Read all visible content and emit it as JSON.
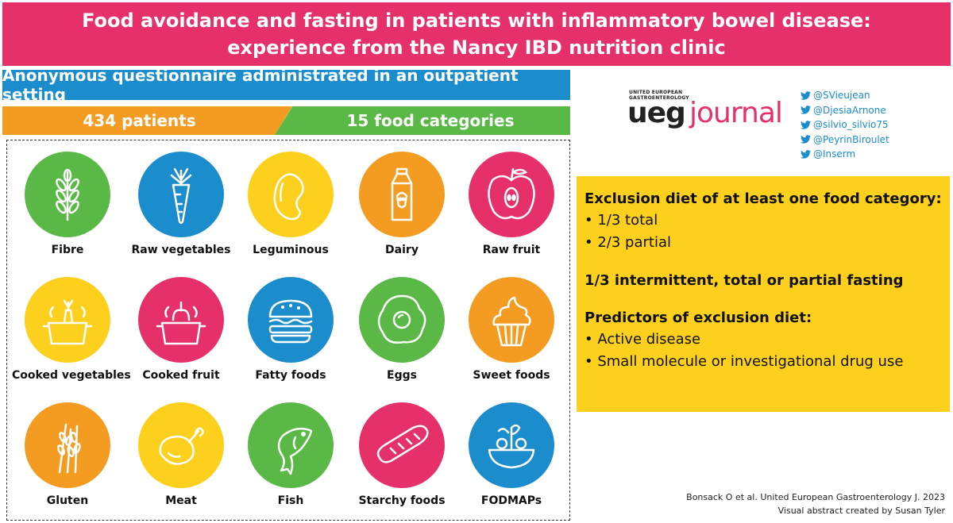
{
  "title": {
    "line1": "Food avoidance and fasting in patients with inflammatory bowel disease:",
    "line2": "experience from the Nancy IBD nutrition clinic"
  },
  "method": "Anonymous questionnaire administrated in an outpatient setting",
  "patients": "434 patients",
  "categories": "15 food categories",
  "foods": [
    {
      "label": "Fibre",
      "color": "#5ab846",
      "icon": "wheat-icon"
    },
    {
      "label": "Raw vegetables",
      "color": "#1b8ccc",
      "icon": "carrot-icon"
    },
    {
      "label": "Leguminous",
      "color": "#fcd01c",
      "icon": "bean-icon"
    },
    {
      "label": "Dairy",
      "color": "#f39c21",
      "icon": "milk-carton-icon"
    },
    {
      "label": "Raw fruit",
      "color": "#e5306a",
      "icon": "apple-icon"
    },
    {
      "label": "Cooked vegetables",
      "color": "#fcd01c",
      "icon": "vegetable-pot-icon"
    },
    {
      "label": "Cooked fruit",
      "color": "#e5306a",
      "icon": "fruit-pot-icon"
    },
    {
      "label": "Fatty foods",
      "color": "#1b8ccc",
      "icon": "burger-icon"
    },
    {
      "label": "Eggs",
      "color": "#5ab846",
      "icon": "fried-egg-icon"
    },
    {
      "label": "Sweet foods",
      "color": "#f39c21",
      "icon": "cupcake-icon"
    },
    {
      "label": "Gluten",
      "color": "#f39c21",
      "icon": "wheat-ear-icon"
    },
    {
      "label": "Meat",
      "color": "#fcd01c",
      "icon": "chicken-icon"
    },
    {
      "label": "Fish",
      "color": "#5ab846",
      "icon": "fish-icon"
    },
    {
      "label": "Starchy foods",
      "color": "#e5306a",
      "icon": "bread-icon"
    },
    {
      "label": "FODMAPs",
      "color": "#1b8ccc",
      "icon": "salad-bowl-icon"
    }
  ],
  "logo": {
    "small_line1": "UNITED EUROPEAN",
    "small_line2": "GASTROENTEROLOGY",
    "brand": "ueg",
    "journal": "journal"
  },
  "handles": [
    "@SVieujean",
    "@DjesiaArnone",
    "@silvio_silvio75",
    "@PeyrinBiroulet",
    "@Inserm"
  ],
  "findings": {
    "heading1": "Exclusion diet of at least one food category:",
    "item1": "• 1/3 total",
    "item2": "• 2/3 partial",
    "heading2": "1/3 intermittent, total or partial fasting",
    "heading3": "Predictors of exclusion diet:",
    "item3": "• Active disease",
    "item4": "• Small molecule or investigational drug use"
  },
  "credits": {
    "citation": "Bonsack O et al. United European Gastroenterology J. 2023",
    "author": "Visual abstract created by Susan Tyler"
  },
  "colors": {
    "pink": "#e5306a",
    "blue": "#1b8ccc",
    "orange": "#f39c21",
    "green": "#5ab846",
    "yellow": "#fcd01c"
  }
}
